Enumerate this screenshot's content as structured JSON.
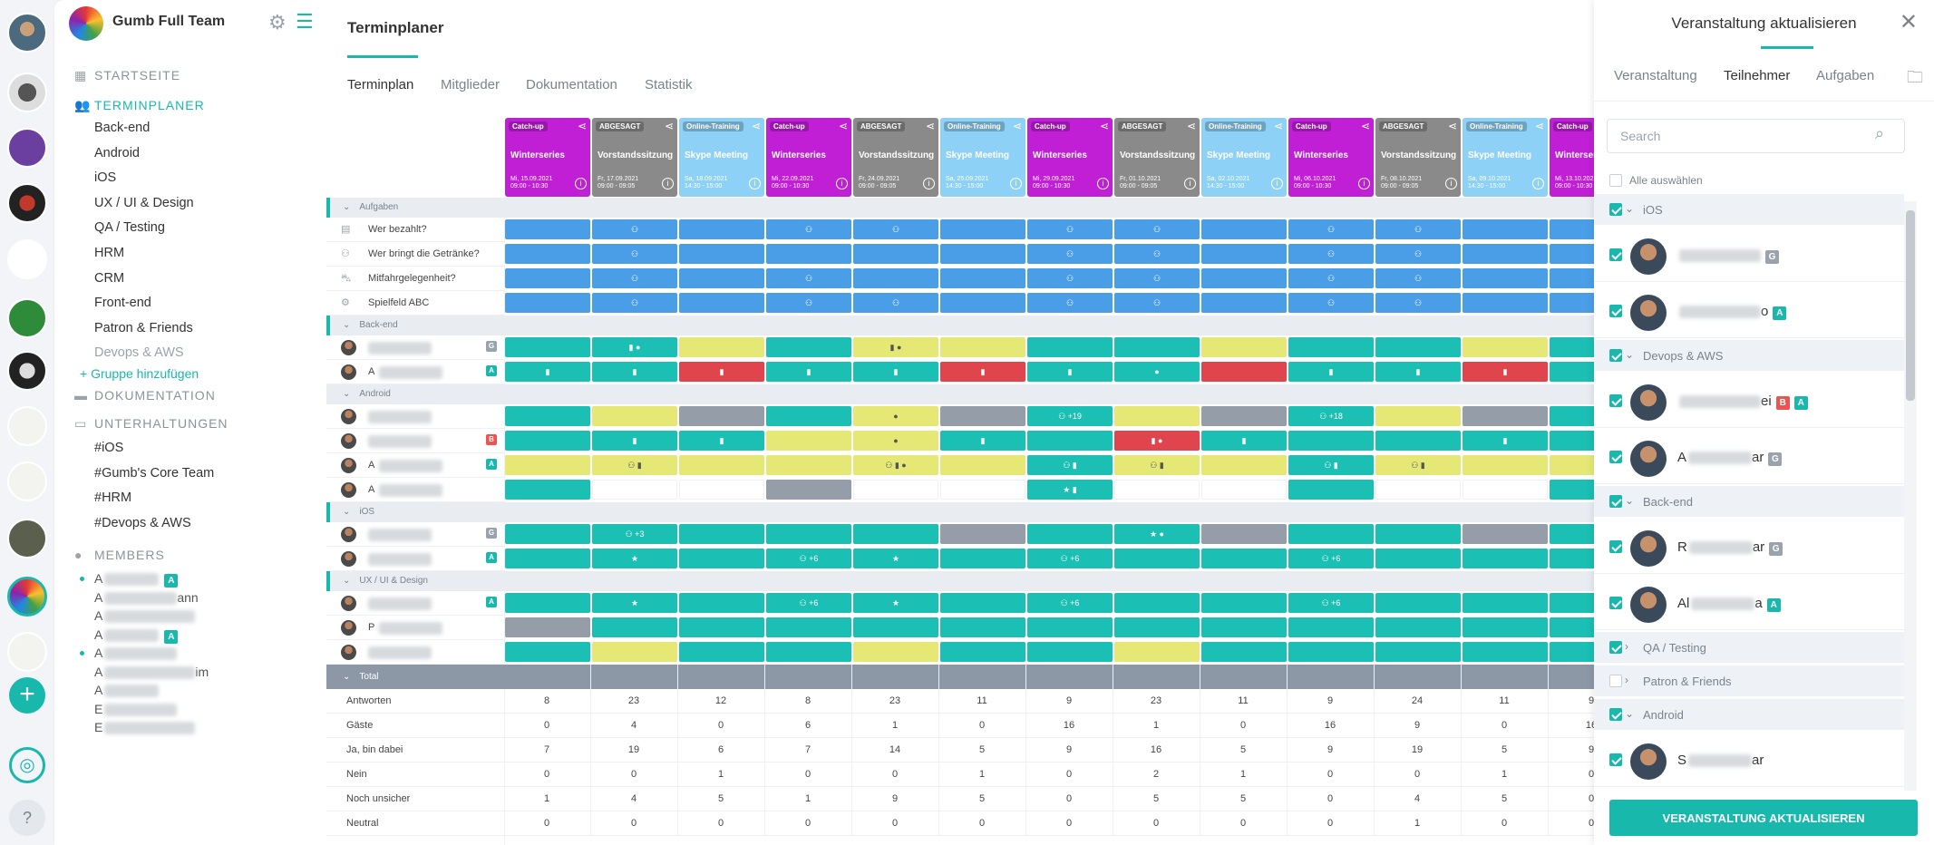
{
  "team": {
    "name": "Gumb Full Team"
  },
  "nav": {
    "startseite": "STARTSEITE",
    "terminplaner": "TERMINPLANER",
    "groups": [
      "Back-end",
      "Android",
      "iOS",
      "UX / UI & Design",
      "QA / Testing",
      "HRM",
      "CRM",
      "Front-end",
      "Patron & Friends",
      "Devops & AWS"
    ],
    "add_group": "+ Gruppe hinzufügen",
    "dokumentation": "DOKUMENTATION",
    "unterhaltungen": "UNTERHALTUNGEN",
    "channels": [
      "#iOS",
      "#Gumb's Core Team",
      "#HRM",
      "#Devops & AWS"
    ],
    "members_title": "MEMBERS",
    "members": [
      {
        "visible": "A",
        "tail": "",
        "badge": "A"
      },
      {
        "visible": "A",
        "tail": "ann",
        "badge": ""
      },
      {
        "visible": "A",
        "tail": "",
        "badge": ""
      },
      {
        "visible": "A",
        "tail": "",
        "badge": "A"
      },
      {
        "visible": "A",
        "tail": "",
        "badge": ""
      },
      {
        "visible": "A",
        "tail": "im",
        "badge": ""
      },
      {
        "visible": "A",
        "tail": "",
        "badge": ""
      },
      {
        "visible": "E",
        "tail": "",
        "badge": ""
      },
      {
        "visible": "E",
        "tail": "",
        "badge": ""
      }
    ]
  },
  "main": {
    "title": "Terminplaner",
    "tabs": [
      "Terminplan",
      "Mitglieder",
      "Dokumentation",
      "Statistik"
    ],
    "events": [
      {
        "cat": "Catch-up",
        "name": "Winterseries",
        "date": "Mi, 15.09.2021",
        "time": "09:00 - 10:30",
        "color": "#c01fd6"
      },
      {
        "cat": "ABGESAGT",
        "name": "Vorstandssitzung",
        "date": "Fr, 17.09.2021",
        "time": "09:00 - 09:05",
        "color": "#8a8a8a"
      },
      {
        "cat": "Online-Training",
        "name": "Skype Meeting",
        "date": "Sa, 18.09.2021",
        "time": "14:30 - 15:00",
        "color": "#8ed1f7"
      },
      {
        "cat": "Catch-up",
        "name": "Winterseries",
        "date": "Mi, 22.09.2021",
        "time": "09:00 - 10:30",
        "color": "#c01fd6"
      },
      {
        "cat": "ABGESAGT",
        "name": "Vorstandssitzung",
        "date": "Fr, 24.09.2021",
        "time": "09:00 - 09:05",
        "color": "#8a8a8a"
      },
      {
        "cat": "Online-Training",
        "name": "Skype Meeting",
        "date": "Sa, 25.09.2021",
        "time": "14:30 - 15:00",
        "color": "#8ed1f7"
      },
      {
        "cat": "Catch-up",
        "name": "Winterseries",
        "date": "Mi, 29.09.2021",
        "time": "09:00 - 10:30",
        "color": "#c01fd6"
      },
      {
        "cat": "ABGESAGT",
        "name": "Vorstandssitzung",
        "date": "Fr, 01.10.2021",
        "time": "09:00 - 09:05",
        "color": "#8a8a8a"
      },
      {
        "cat": "Online-Training",
        "name": "Skype Meeting",
        "date": "Sa, 02.10.2021",
        "time": "14:30 - 15:00",
        "color": "#8ed1f7"
      },
      {
        "cat": "Catch-up",
        "name": "Winterseries",
        "date": "Mi, 06.10.2021",
        "time": "09:00 - 10:30",
        "color": "#c01fd6"
      },
      {
        "cat": "ABGESAGT",
        "name": "Vorstandssitzung",
        "date": "Fr, 08.10.2021",
        "time": "09:00 - 09:05",
        "color": "#8a8a8a"
      },
      {
        "cat": "Online-Training",
        "name": "Skype Meeting",
        "date": "Sa, 09.10.2021",
        "time": "14:30 - 15:00",
        "color": "#8ed1f7"
      },
      {
        "cat": "Catch-up",
        "name": "Winterseries",
        "date": "Mi, 13.10.2021",
        "time": "09:00 - 10:30",
        "color": "#c01fd6"
      }
    ],
    "sections": [
      {
        "label": "Aufgaben",
        "rows": [
          {
            "label": "Wer bezahlt?",
            "icon": "receipt-icon",
            "badge": "",
            "cells": [
              "blue",
              "blue:p",
              "blue",
              "blue:p",
              "blue:p",
              "blue",
              "blue:p",
              "blue:p",
              "blue",
              "blue:p",
              "blue:p",
              "blue",
              "blue"
            ]
          },
          {
            "label": "Wer bringt die Getränke?",
            "icon": "drinks-icon",
            "badge": "",
            "cells": [
              "blue",
              "blue:p",
              "blue",
              "blue",
              "blue",
              "blue",
              "blue:p",
              "blue:p",
              "blue",
              "blue:p",
              "blue:p",
              "blue",
              "blue"
            ]
          },
          {
            "label": "Mitfahrgelegenheit?",
            "icon": "car-icon",
            "badge": "",
            "cells": [
              "blue",
              "blue:p",
              "blue",
              "blue:p",
              "blue",
              "blue",
              "blue:p",
              "blue:p",
              "blue",
              "blue:p",
              "blue:p",
              "blue",
              "blue"
            ]
          },
          {
            "label": "Spielfeld ABC",
            "icon": "gear-icon",
            "badge": "",
            "cells": [
              "blue",
              "blue:p",
              "blue",
              "blue:p",
              "blue:p",
              "blue",
              "blue:p",
              "blue:p",
              "blue",
              "blue:p",
              "blue:p",
              "blue",
              "blue"
            ]
          }
        ]
      },
      {
        "label": "Back-end",
        "rows": [
          {
            "label": "",
            "icon": "avatar",
            "badge": "G",
            "cells": [
              "teal",
              "teal:c•",
              "yellow",
              "teal",
              "yellow:c•",
              "yellow",
              "teal",
              "teal",
              "yellow",
              "teal",
              "teal",
              "yellow",
              "teal"
            ]
          },
          {
            "label": "A",
            "icon": "avatar",
            "badge": "A",
            "cells": [
              "teal:c",
              "teal:c",
              "red:c",
              "teal:c",
              "teal:c",
              "red:c",
              "teal:c",
              "teal:•",
              "red",
              "teal:c",
              "teal:c",
              "red:c",
              "teal"
            ]
          }
        ]
      },
      {
        "label": "Android",
        "rows": [
          {
            "label": "",
            "icon": "avatar",
            "badge": "",
            "cells": [
              "teal",
              "yellow",
              "gray",
              "teal",
              "yellow:•",
              "gray",
              "teal:p+19",
              "yellow",
              "gray",
              "teal:p+18",
              "yellow",
              "gray",
              "teal"
            ]
          },
          {
            "label": "",
            "icon": "avatar",
            "badge": "B",
            "cells": [
              "teal",
              "teal:c",
              "teal:c",
              "yellow",
              "yellow:•",
              "teal:c",
              "teal",
              "red:c•",
              "teal:c",
              "teal",
              "teal",
              "teal:c",
              "teal"
            ]
          },
          {
            "label": "A",
            "icon": "avatar",
            "badge": "A",
            "cells": [
              "yellow",
              "yellow:pc",
              "yellow",
              "yellow",
              "yellow:pc•",
              "yellow",
              "teal:pc",
              "yellow:pc",
              "yellow",
              "teal:pc",
              "yellow:pc",
              "yellow",
              "yellow"
            ]
          },
          {
            "label": "A",
            "icon": "avatar",
            "badge": "",
            "cells": [
              "teal",
              "empty",
              "empty",
              "gray",
              "empty",
              "empty",
              "teal:★c",
              "empty",
              "empty",
              "teal",
              "empty",
              "empty",
              "teal"
            ]
          }
        ]
      },
      {
        "label": "iOS",
        "rows": [
          {
            "label": "",
            "icon": "avatar",
            "badge": "G",
            "cells": [
              "teal",
              "teal:p+3",
              "teal",
              "teal",
              "teal",
              "gray",
              "teal",
              "teal:★•",
              "gray",
              "teal",
              "teal",
              "gray",
              "teal"
            ]
          },
          {
            "label": "",
            "icon": "avatar",
            "badge": "A",
            "cells": [
              "teal",
              "teal:★",
              "teal",
              "teal:p+6",
              "teal:★",
              "teal",
              "teal:p+6",
              "teal",
              "teal",
              "teal:p+6",
              "teal",
              "teal",
              "teal"
            ]
          }
        ]
      },
      {
        "label": "UX / UI & Design",
        "rows": [
          {
            "label": "",
            "icon": "avatar",
            "badge": "A",
            "cells": [
              "teal",
              "teal:★",
              "teal",
              "teal:p+6",
              "teal:★",
              "teal",
              "teal:p+6",
              "teal",
              "teal",
              "teal:p+6",
              "teal",
              "teal",
              "teal"
            ]
          },
          {
            "label": "P",
            "icon": "avatar",
            "badge": "",
            "cells": [
              "gray",
              "teal",
              "teal",
              "teal",
              "teal",
              "teal",
              "teal",
              "teal",
              "teal",
              "teal",
              "teal",
              "teal",
              "teal"
            ]
          },
          {
            "label": "",
            "icon": "avatar",
            "badge": "",
            "cells": [
              "teal",
              "yellow",
              "teal",
              "teal",
              "yellow",
              "teal",
              "teal",
              "yellow",
              "teal",
              "teal",
              "teal",
              "teal",
              "teal"
            ]
          }
        ]
      }
    ],
    "total": {
      "label": "Total",
      "rows": [
        {
          "label": "Antworten",
          "values": [
            "8",
            "23",
            "12",
            "8",
            "23",
            "11",
            "9",
            "23",
            "11",
            "9",
            "24",
            "11",
            "9"
          ]
        },
        {
          "label": "Gäste",
          "values": [
            "0",
            "4",
            "0",
            "6",
            "1",
            "0",
            "16",
            "1",
            "0",
            "16",
            "9",
            "0",
            "16"
          ]
        },
        {
          "label": "Ja, bin dabei",
          "values": [
            "7",
            "19",
            "6",
            "7",
            "14",
            "5",
            "9",
            "16",
            "5",
            "9",
            "19",
            "5",
            "9"
          ]
        },
        {
          "label": "Nein",
          "values": [
            "0",
            "0",
            "1",
            "0",
            "0",
            "1",
            "0",
            "2",
            "1",
            "0",
            "0",
            "1",
            "0"
          ]
        },
        {
          "label": "Noch unsicher",
          "values": [
            "1",
            "4",
            "5",
            "1",
            "9",
            "5",
            "0",
            "5",
            "5",
            "0",
            "4",
            "5",
            "0"
          ]
        },
        {
          "label": "Neutral",
          "values": [
            "0",
            "0",
            "0",
            "0",
            "0",
            "0",
            "0",
            "0",
            "0",
            "0",
            "1",
            "0",
            "0"
          ]
        }
      ]
    }
  },
  "panel": {
    "title": "Veranstaltung aktualisieren",
    "tabs": [
      "Veranstaltung",
      "Teilnehmer",
      "Aufgaben"
    ],
    "search_placeholder": "Search",
    "select_all": "Alle auswählen",
    "groups": [
      {
        "label": "iOS",
        "checked": true,
        "expanded": true,
        "people": [
          {
            "name": "",
            "badges": [
              "G"
            ]
          },
          {
            "name": "",
            "tail": "o",
            "badges": [
              "A"
            ]
          }
        ]
      },
      {
        "label": "Devops & AWS",
        "checked": true,
        "expanded": true,
        "people": [
          {
            "name": "",
            "tail": "ei",
            "badges": [
              "B",
              "A"
            ]
          },
          {
            "name": "A",
            "tail": "ar",
            "badges": [
              "G"
            ]
          }
        ]
      },
      {
        "label": "Back-end",
        "checked": true,
        "expanded": true,
        "people": [
          {
            "name": "R",
            "tail": "ar",
            "badges": [
              "G"
            ]
          },
          {
            "name": "Al",
            "tail": "a",
            "badges": [
              "A"
            ]
          }
        ]
      },
      {
        "label": "QA / Testing",
        "checked": true,
        "expanded": false,
        "people": []
      },
      {
        "label": "Patron & Friends",
        "checked": false,
        "expanded": false,
        "people": []
      },
      {
        "label": "Android",
        "checked": true,
        "expanded": true,
        "people": [
          {
            "name": "S",
            "tail": "ar",
            "badges": []
          }
        ]
      }
    ],
    "button": "VERANSTALTUNG AKTUALISIEREN"
  },
  "colors": {
    "accent": "#19b8ad",
    "blue": "#4a9ee8",
    "teal": "#1bbfb3",
    "yellow": "#e6e876",
    "gray": "#949da8",
    "red": "#e0454e",
    "purple": "#c01fd6"
  }
}
